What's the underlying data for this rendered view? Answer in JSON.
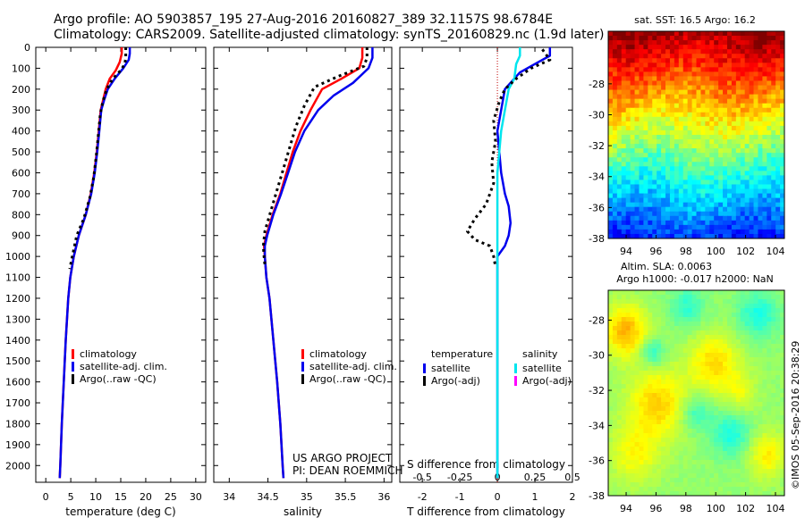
{
  "header": {
    "line1": "Argo profile: AO 5903857_195 27-Aug-2016 20160827_389 32.1157S 98.6784E",
    "line2": "Climatology: CARS2009. Satellite-adjusted climatology: synTS_20160829.nc (1.9d later)"
  },
  "credits": {
    "project": "US ARGO PROJECT",
    "pi": "PI: DEAN ROEMMICH",
    "imos": "©IMOS 05-Sep-2016 20:38:29"
  },
  "colors": {
    "climatology": "#ff0000",
    "satellite": "#0000ee",
    "argo": "#000000",
    "salinity_satellite": "#00e5ee",
    "salinity_argo": "#ff00ff"
  },
  "chart_data": [
    {
      "id": "temperature",
      "type": "line",
      "xlabel": "temperature (deg C)",
      "xlim": [
        -2,
        32
      ],
      "ylim": [
        2080,
        0
      ],
      "xticks": [
        0,
        5,
        10,
        15,
        20,
        25,
        30
      ],
      "yticks": [
        0,
        100,
        200,
        300,
        400,
        500,
        600,
        700,
        800,
        900,
        1000,
        1100,
        1200,
        1300,
        1400,
        1500,
        1600,
        1700,
        1800,
        1900,
        2000
      ],
      "legend": [
        "climatology",
        "satellite-adj. clim.",
        "Argo(..raw -QC)"
      ],
      "series": [
        {
          "name": "climatology",
          "color_key": "climatology",
          "points": [
            [
              15.2,
              0
            ],
            [
              15.2,
              30
            ],
            [
              14.8,
              70
            ],
            [
              14.0,
              110
            ],
            [
              12.8,
              150
            ],
            [
              12.0,
              200
            ],
            [
              11.5,
              250
            ],
            [
              11.0,
              300
            ],
            [
              10.6,
              400
            ],
            [
              10.2,
              500
            ],
            [
              9.7,
              600
            ],
            [
              9.0,
              700
            ],
            [
              8.0,
              800
            ],
            [
              6.6,
              900
            ],
            [
              5.6,
              1000
            ],
            [
              4.9,
              1100
            ],
            [
              4.5,
              1200
            ],
            [
              4.0,
              1400
            ],
            [
              3.6,
              1600
            ],
            [
              3.2,
              1800
            ],
            [
              2.9,
              2000
            ],
            [
              2.8,
              2060
            ]
          ]
        },
        {
          "name": "satellite-adj. clim.",
          "color_key": "satellite",
          "points": [
            [
              16.8,
              0
            ],
            [
              16.8,
              30
            ],
            [
              16.6,
              60
            ],
            [
              15.5,
              100
            ],
            [
              13.8,
              150
            ],
            [
              12.4,
              200
            ],
            [
              11.7,
              250
            ],
            [
              11.1,
              300
            ],
            [
              10.7,
              400
            ],
            [
              10.3,
              500
            ],
            [
              9.8,
              600
            ],
            [
              9.1,
              700
            ],
            [
              8.0,
              800
            ],
            [
              6.6,
              900
            ],
            [
              5.6,
              1000
            ],
            [
              4.9,
              1100
            ],
            [
              4.5,
              1200
            ],
            [
              4.0,
              1400
            ],
            [
              3.6,
              1600
            ],
            [
              3.2,
              1800
            ],
            [
              2.9,
              2000
            ],
            [
              2.8,
              2060
            ]
          ]
        },
        {
          "name": "Argo(..raw -QC)",
          "color_key": "argo",
          "dashed": true,
          "points": [
            [
              16.0,
              0
            ],
            [
              16.0,
              50
            ],
            [
              15.8,
              80
            ],
            [
              15.0,
              110
            ],
            [
              13.4,
              150
            ],
            [
              12.2,
              200
            ],
            [
              11.4,
              260
            ],
            [
              10.9,
              320
            ],
            [
              10.5,
              420
            ],
            [
              10.1,
              520
            ],
            [
              9.6,
              620
            ],
            [
              8.8,
              720
            ],
            [
              7.6,
              820
            ],
            [
              6.2,
              900
            ],
            [
              5.3,
              1000
            ],
            [
              4.8,
              1060
            ]
          ]
        }
      ]
    },
    {
      "id": "salinity",
      "type": "line",
      "xlabel": "salinity",
      "xlim": [
        33.8,
        36.1
      ],
      "ylim": [
        2080,
        0
      ],
      "xticks": [
        34,
        34.5,
        35,
        35.5,
        36
      ],
      "legend": [
        "climatology",
        "satellite-adj. clim.",
        "Argo(..raw -QC)"
      ],
      "series": [
        {
          "name": "climatology",
          "color_key": "climatology",
          "points": [
            [
              35.72,
              0
            ],
            [
              35.72,
              50
            ],
            [
              35.68,
              100
            ],
            [
              35.45,
              150
            ],
            [
              35.2,
              200
            ],
            [
              35.05,
              300
            ],
            [
              34.92,
              400
            ],
            [
              34.82,
              500
            ],
            [
              34.74,
              600
            ],
            [
              34.66,
              700
            ],
            [
              34.56,
              800
            ],
            [
              34.48,
              900
            ],
            [
              34.45,
              950
            ],
            [
              34.46,
              1000
            ],
            [
              34.48,
              1100
            ],
            [
              34.52,
              1200
            ],
            [
              34.57,
              1400
            ],
            [
              34.62,
              1600
            ],
            [
              34.66,
              1800
            ],
            [
              34.69,
              2000
            ],
            [
              34.7,
              2060
            ]
          ]
        },
        {
          "name": "satellite-adj. clim.",
          "color_key": "satellite",
          "points": [
            [
              35.85,
              0
            ],
            [
              35.85,
              50
            ],
            [
              35.8,
              100
            ],
            [
              35.6,
              170
            ],
            [
              35.35,
              230
            ],
            [
              35.15,
              300
            ],
            [
              34.97,
              400
            ],
            [
              34.85,
              500
            ],
            [
              34.76,
              600
            ],
            [
              34.67,
              700
            ],
            [
              34.57,
              800
            ],
            [
              34.49,
              900
            ],
            [
              34.46,
              950
            ],
            [
              34.46,
              1000
            ],
            [
              34.48,
              1100
            ],
            [
              34.52,
              1200
            ],
            [
              34.57,
              1400
            ],
            [
              34.62,
              1600
            ],
            [
              34.66,
              1800
            ],
            [
              34.69,
              2000
            ],
            [
              34.7,
              2060
            ]
          ]
        },
        {
          "name": "Argo(..raw -QC)",
          "color_key": "argo",
          "dashed": true,
          "points": [
            [
              35.78,
              0
            ],
            [
              35.78,
              50
            ],
            [
              35.74,
              90
            ],
            [
              35.4,
              140
            ],
            [
              35.1,
              190
            ],
            [
              34.97,
              280
            ],
            [
              34.86,
              380
            ],
            [
              34.78,
              480
            ],
            [
              34.7,
              580
            ],
            [
              34.62,
              680
            ],
            [
              34.54,
              780
            ],
            [
              34.46,
              880
            ],
            [
              34.44,
              950
            ],
            [
              34.45,
              1000
            ],
            [
              34.46,
              1040
            ]
          ]
        }
      ]
    },
    {
      "id": "difference",
      "type": "line",
      "xlabel": "T difference from climatology",
      "xlabel2": "S difference from climatology",
      "xlim": [
        -2.6,
        2.0
      ],
      "ylim": [
        2080,
        0
      ],
      "xticks": [
        -2,
        -1,
        0,
        1,
        2
      ],
      "s_ticks": [
        -0.5,
        -0.25,
        0,
        0.25,
        0.5
      ],
      "legend_groups": [
        {
          "title": "temperature",
          "items": [
            "satellite",
            "Argo(-adj)"
          ]
        },
        {
          "title": "salinity",
          "items": [
            "satellite",
            "Argo(-adj)"
          ]
        }
      ],
      "series": [
        {
          "name": "temperature satellite",
          "color_key": "satellite",
          "points": [
            [
              1.4,
              0
            ],
            [
              1.4,
              40
            ],
            [
              1.0,
              80
            ],
            [
              0.6,
              120
            ],
            [
              0.45,
              150
            ],
            [
              0.2,
              200
            ],
            [
              0.1,
              300
            ],
            [
              0.0,
              400
            ],
            [
              0.05,
              500
            ],
            [
              0.1,
              600
            ],
            [
              0.2,
              700
            ],
            [
              0.3,
              760
            ],
            [
              0.35,
              840
            ],
            [
              0.3,
              900
            ],
            [
              0.2,
              950
            ],
            [
              0.0,
              1000
            ],
            [
              0.0,
              2060
            ]
          ]
        },
        {
          "name": "salinity satellite",
          "color_key": "salinity_satellite",
          "points": [
            [
              0.6,
              0
            ],
            [
              0.6,
              40
            ],
            [
              0.5,
              80
            ],
            [
              0.45,
              150
            ],
            [
              0.3,
              200
            ],
            [
              0.2,
              300
            ],
            [
              0.1,
              400
            ],
            [
              0.05,
              500
            ],
            [
              0.0,
              600
            ],
            [
              0.0,
              2060
            ]
          ]
        },
        {
          "name": "temperature Argo(-adj)",
          "color_key": "argo",
          "dashed": true,
          "points": [
            [
              1.2,
              10
            ],
            [
              1.4,
              60
            ],
            [
              0.9,
              100
            ],
            [
              0.5,
              150
            ],
            [
              0.2,
              200
            ],
            [
              0.05,
              260
            ],
            [
              -0.1,
              350
            ],
            [
              -0.05,
              450
            ],
            [
              -0.15,
              550
            ],
            [
              -0.1,
              650
            ],
            [
              -0.3,
              750
            ],
            [
              -0.6,
              820
            ],
            [
              -0.8,
              880
            ],
            [
              -0.6,
              920
            ],
            [
              -0.2,
              950
            ],
            [
              -0.1,
              1000
            ],
            [
              -0.05,
              1050
            ]
          ]
        }
      ]
    },
    {
      "id": "sst_map",
      "type": "heatmap",
      "title": "sat. SST: 16.5 Argo: 16.2",
      "xlim": [
        92.8,
        104.6
      ],
      "ylim": [
        -38,
        -24.6
      ],
      "xticks": [
        94,
        96,
        98,
        100,
        102,
        104
      ],
      "yticks": [
        -28,
        -30,
        -32,
        -34,
        -36,
        -38
      ]
    },
    {
      "id": "sla_map",
      "type": "heatmap",
      "title1": "Altim. SLA: 0.0063",
      "title2": "Argo h1000: -0.017 h2000: NaN",
      "xlim": [
        92.8,
        104.6
      ],
      "ylim": [
        -38,
        -26.3
      ],
      "xticks": [
        94,
        96,
        98,
        100,
        102,
        104
      ],
      "yticks": [
        -28,
        -30,
        -32,
        -34,
        -36,
        -38
      ]
    }
  ]
}
